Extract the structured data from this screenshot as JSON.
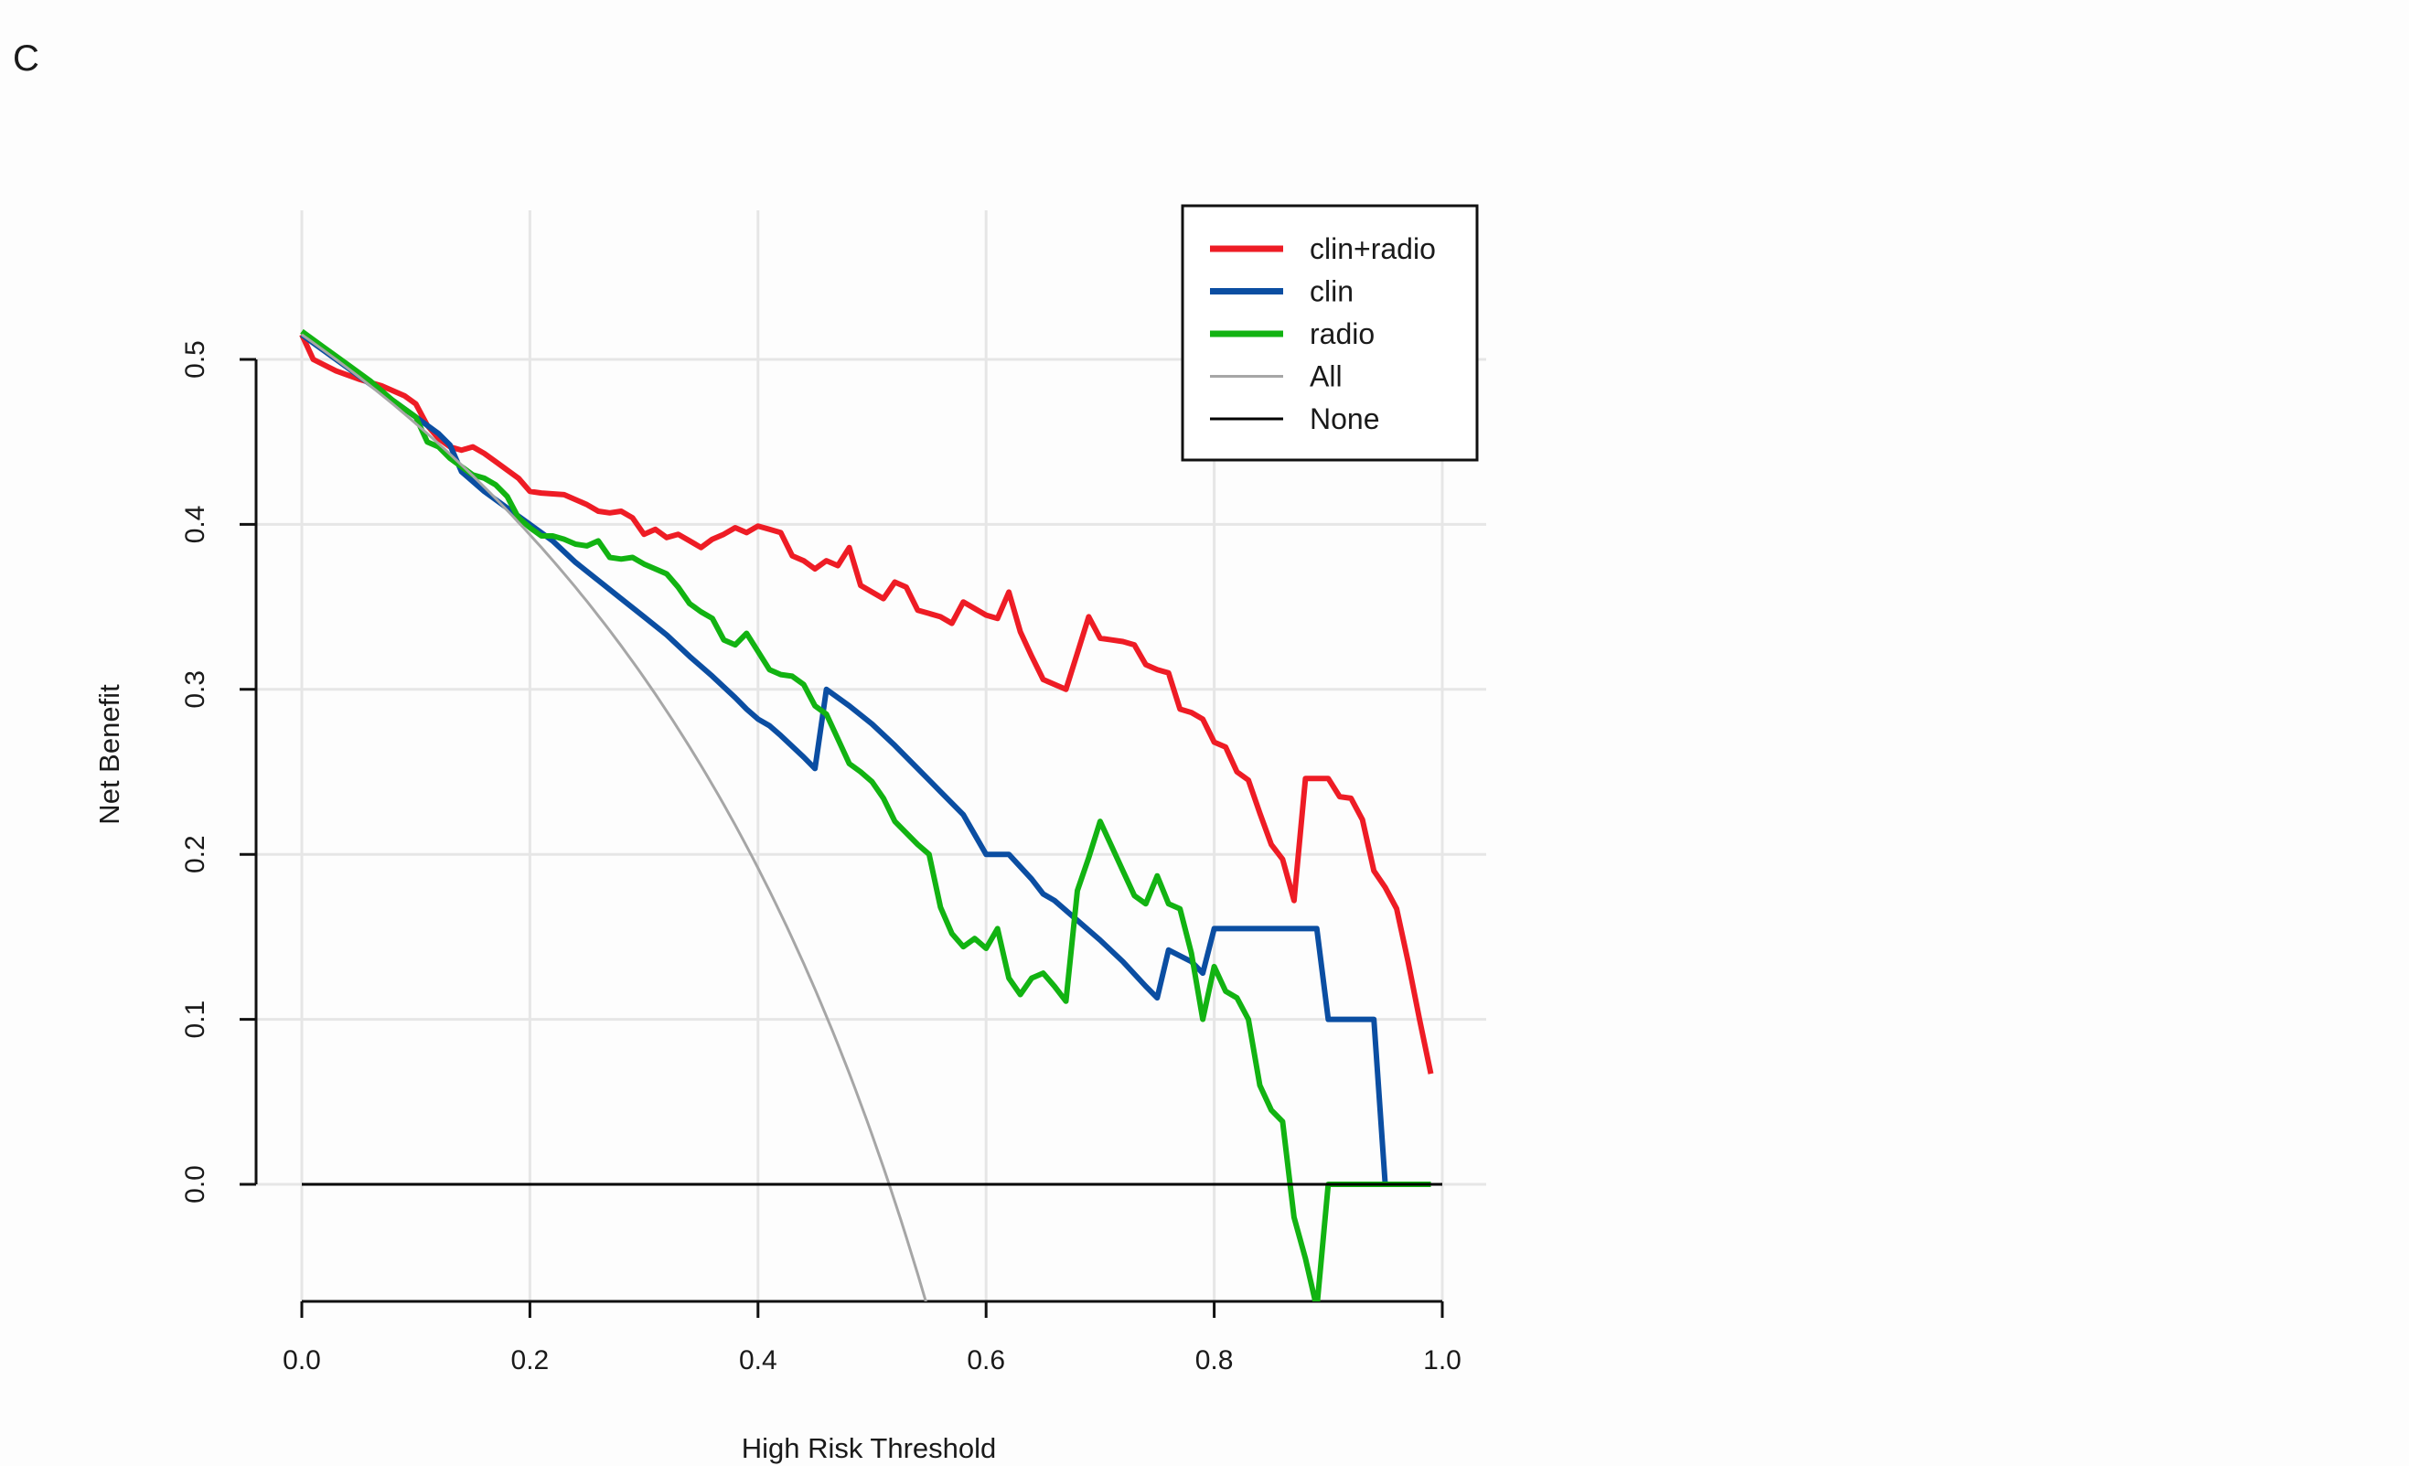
{
  "panel_label": "C",
  "chart_data": {
    "type": "line",
    "title": "",
    "xlabel": "High Risk Threshold",
    "ylabel": "Net Benefit",
    "xlim": [
      0,
      1
    ],
    "ylim": [
      -0.075,
      0.52
    ],
    "x_ticks": [
      0.0,
      0.2,
      0.4,
      0.6,
      0.8,
      1.0
    ],
    "x_tick_labels": [
      "0.0",
      "0.2",
      "0.4",
      "0.6",
      "0.8",
      "1.0"
    ],
    "y_ticks": [
      0.0,
      0.1,
      0.2,
      0.3,
      0.4,
      0.5
    ],
    "y_tick_labels": [
      "0.0",
      "0.1",
      "0.2",
      "0.3",
      "0.4",
      "0.5"
    ],
    "grid": true,
    "legend_position": "top-right",
    "series": [
      {
        "name": "clin+radio",
        "color": "#ee1c25",
        "x": [
          0.0,
          0.01,
          0.03,
          0.05,
          0.07,
          0.09,
          0.1,
          0.11,
          0.12,
          0.13,
          0.14,
          0.15,
          0.16,
          0.17,
          0.18,
          0.19,
          0.2,
          0.21,
          0.23,
          0.25,
          0.26,
          0.27,
          0.28,
          0.29,
          0.3,
          0.31,
          0.32,
          0.33,
          0.34,
          0.35,
          0.36,
          0.37,
          0.38,
          0.39,
          0.4,
          0.41,
          0.42,
          0.43,
          0.44,
          0.45,
          0.46,
          0.47,
          0.48,
          0.49,
          0.5,
          0.51,
          0.52,
          0.53,
          0.54,
          0.55,
          0.56,
          0.57,
          0.58,
          0.59,
          0.6,
          0.61,
          0.62,
          0.63,
          0.64,
          0.65,
          0.66,
          0.67,
          0.68,
          0.69,
          0.7,
          0.71,
          0.72,
          0.73,
          0.74,
          0.75,
          0.76,
          0.77,
          0.78,
          0.79,
          0.8,
          0.81,
          0.82,
          0.83,
          0.84,
          0.85,
          0.86,
          0.87,
          0.88,
          0.89,
          0.9,
          0.91,
          0.92,
          0.93,
          0.94,
          0.95,
          0.96,
          0.97,
          0.98,
          0.99
        ],
        "values": [
          0.515,
          0.5,
          0.493,
          0.488,
          0.484,
          0.478,
          0.473,
          0.46,
          0.452,
          0.447,
          0.445,
          0.447,
          0.443,
          0.438,
          0.433,
          0.428,
          0.42,
          0.419,
          0.418,
          0.412,
          0.408,
          0.407,
          0.408,
          0.404,
          0.394,
          0.397,
          0.392,
          0.394,
          0.39,
          0.386,
          0.391,
          0.394,
          0.398,
          0.395,
          0.399,
          0.397,
          0.395,
          0.381,
          0.378,
          0.373,
          0.378,
          0.375,
          0.386,
          0.363,
          0.359,
          0.355,
          0.365,
          0.362,
          0.348,
          0.346,
          0.344,
          0.34,
          0.353,
          0.349,
          0.345,
          0.343,
          0.359,
          0.335,
          0.32,
          0.306,
          0.303,
          0.3,
          0.322,
          0.344,
          0.331,
          0.33,
          0.329,
          0.327,
          0.315,
          0.312,
          0.31,
          0.288,
          0.286,
          0.282,
          0.268,
          0.265,
          0.25,
          0.245,
          0.225,
          0.206,
          0.197,
          0.172,
          0.246,
          0.246,
          0.246,
          0.235,
          0.234,
          0.221,
          0.19,
          0.18,
          0.167,
          0.135,
          0.1,
          0.067
        ]
      },
      {
        "name": "clin",
        "color": "#0b4ea2",
        "x": [
          0.0,
          0.02,
          0.04,
          0.06,
          0.08,
          0.1,
          0.12,
          0.13,
          0.14,
          0.16,
          0.18,
          0.2,
          0.22,
          0.24,
          0.26,
          0.28,
          0.3,
          0.32,
          0.34,
          0.36,
          0.38,
          0.39,
          0.4,
          0.41,
          0.42,
          0.44,
          0.45,
          0.46,
          0.48,
          0.5,
          0.52,
          0.54,
          0.56,
          0.58,
          0.6,
          0.62,
          0.64,
          0.65,
          0.66,
          0.68,
          0.7,
          0.72,
          0.74,
          0.75,
          0.76,
          0.78,
          0.79,
          0.8,
          0.81,
          0.83,
          0.85,
          0.87,
          0.89,
          0.9,
          0.92,
          0.94,
          0.95
        ],
        "values": [
          0.515,
          0.505,
          0.495,
          0.485,
          0.475,
          0.465,
          0.455,
          0.448,
          0.432,
          0.42,
          0.41,
          0.4,
          0.39,
          0.377,
          0.366,
          0.355,
          0.344,
          0.333,
          0.32,
          0.308,
          0.295,
          0.288,
          0.282,
          0.278,
          0.272,
          0.259,
          0.252,
          0.3,
          0.29,
          0.279,
          0.266,
          0.252,
          0.238,
          0.224,
          0.2,
          0.2,
          0.185,
          0.176,
          0.172,
          0.16,
          0.148,
          0.135,
          0.12,
          0.113,
          0.142,
          0.135,
          0.128,
          0.155,
          0.155,
          0.155,
          0.155,
          0.155,
          0.155,
          0.1,
          0.1,
          0.1,
          0.0
        ]
      },
      {
        "name": "radio",
        "color": "#12b312",
        "x": [
          0.0,
          0.02,
          0.04,
          0.06,
          0.08,
          0.1,
          0.11,
          0.12,
          0.13,
          0.14,
          0.15,
          0.16,
          0.17,
          0.18,
          0.19,
          0.2,
          0.21,
          0.22,
          0.23,
          0.24,
          0.25,
          0.26,
          0.27,
          0.28,
          0.29,
          0.3,
          0.31,
          0.32,
          0.33,
          0.34,
          0.35,
          0.36,
          0.37,
          0.38,
          0.39,
          0.4,
          0.41,
          0.42,
          0.43,
          0.44,
          0.45,
          0.46,
          0.47,
          0.48,
          0.49,
          0.5,
          0.51,
          0.52,
          0.53,
          0.54,
          0.55,
          0.56,
          0.57,
          0.58,
          0.59,
          0.6,
          0.61,
          0.62,
          0.63,
          0.64,
          0.65,
          0.66,
          0.67,
          0.68,
          0.69,
          0.7,
          0.71,
          0.72,
          0.73,
          0.74,
          0.75,
          0.76,
          0.77,
          0.78,
          0.79,
          0.8,
          0.81,
          0.82,
          0.83,
          0.84,
          0.85,
          0.86,
          0.87,
          0.88,
          0.89,
          0.9,
          0.91,
          0.92,
          0.93,
          0.94,
          0.95,
          0.96,
          0.97,
          0.98,
          0.99
        ],
        "values": [
          0.517,
          0.507,
          0.497,
          0.487,
          0.475,
          0.465,
          0.45,
          0.447,
          0.44,
          0.435,
          0.43,
          0.428,
          0.424,
          0.417,
          0.404,
          0.398,
          0.393,
          0.393,
          0.391,
          0.388,
          0.387,
          0.39,
          0.38,
          0.379,
          0.38,
          0.376,
          0.373,
          0.37,
          0.362,
          0.352,
          0.347,
          0.343,
          0.33,
          0.327,
          0.334,
          0.323,
          0.312,
          0.309,
          0.308,
          0.303,
          0.29,
          0.285,
          0.27,
          0.255,
          0.25,
          0.244,
          0.234,
          0.22,
          0.213,
          0.206,
          0.2,
          0.168,
          0.152,
          0.144,
          0.149,
          0.143,
          0.155,
          0.125,
          0.115,
          0.125,
          0.128,
          0.12,
          0.111,
          0.178,
          0.198,
          0.22,
          0.205,
          0.19,
          0.175,
          0.17,
          0.187,
          0.17,
          0.167,
          0.14,
          0.1,
          0.132,
          0.117,
          0.113,
          0.1,
          0.06,
          0.045,
          0.038,
          -0.02,
          -0.045,
          -0.075,
          0.0,
          0.0,
          0.0,
          0.0,
          0.0,
          0.0,
          0.0,
          0.0,
          0.0,
          0.0
        ]
      },
      {
        "name": "All",
        "color": "#a6a6a6",
        "prevalence": 0.515,
        "x": [
          0.0,
          0.05,
          0.1,
          0.15,
          0.2,
          0.25,
          0.3,
          0.35,
          0.4,
          0.45,
          0.5,
          0.515,
          0.55
        ],
        "values": [
          0.515,
          0.49,
          0.461,
          0.429,
          0.394,
          0.353,
          0.307,
          0.254,
          0.192,
          0.119,
          0.03,
          0.0,
          -0.078
        ]
      },
      {
        "name": "None",
        "color": "#000000",
        "x": [
          0.0,
          1.0
        ],
        "values": [
          0.0,
          0.0
        ]
      }
    ]
  }
}
